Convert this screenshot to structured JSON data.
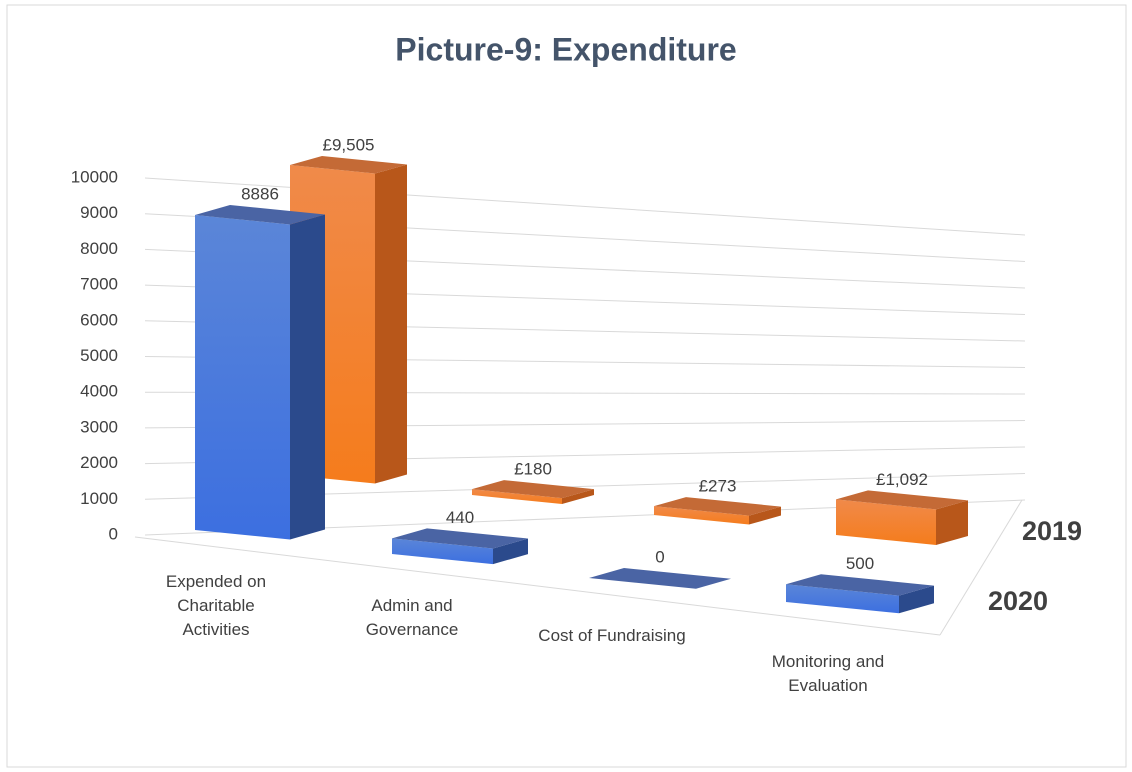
{
  "chart_data": {
    "type": "bar3d",
    "title": "Picture-9: Expenditure",
    "categories": [
      "Expended on Charitable Activities",
      "Admin and Governance",
      "Cost of Fundraising",
      "Monitoring and Evaluation"
    ],
    "series": [
      {
        "name": "2020",
        "color": "#4472c4",
        "values": [
          8886,
          440,
          0,
          500
        ]
      },
      {
        "name": "2019",
        "color": "#ed7d31",
        "values": [
          9505,
          180,
          273,
          1092
        ],
        "value_labels": [
          "£9,505",
          "£180",
          "£273",
          "£1,092"
        ]
      }
    ],
    "ylim": [
      0,
      10000
    ],
    "yticks": [
      0,
      1000,
      2000,
      3000,
      4000,
      5000,
      6000,
      7000,
      8000,
      9000,
      10000
    ],
    "grid": true
  }
}
